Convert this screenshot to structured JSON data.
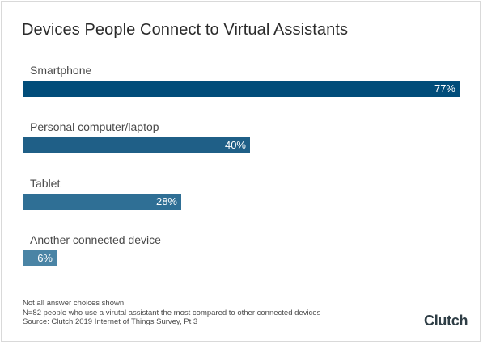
{
  "chart_data": {
    "type": "bar",
    "orientation": "horizontal",
    "title": "Devices People Connect to Virtual Assistants",
    "categories": [
      "Smartphone",
      "Personal computer/laptop",
      "Tablet",
      "Another connected device"
    ],
    "values": [
      77,
      40,
      28,
      6
    ],
    "value_labels": [
      "77%",
      "40%",
      "28%",
      "6%"
    ],
    "bar_colors": [
      "#014d7a",
      "#1f5f87",
      "#2f6f95",
      "#4a84a5"
    ],
    "xlim": [
      0,
      77
    ],
    "grid": false,
    "legend": "none"
  },
  "notes": [
    "Not all answer choices shown",
    "N=82 people who use a virutal assistant the most compared to other connected devices",
    "Source: Clutch 2019 Internet of Things Survey, Pt 3"
  ],
  "logo_text": "Clutch"
}
